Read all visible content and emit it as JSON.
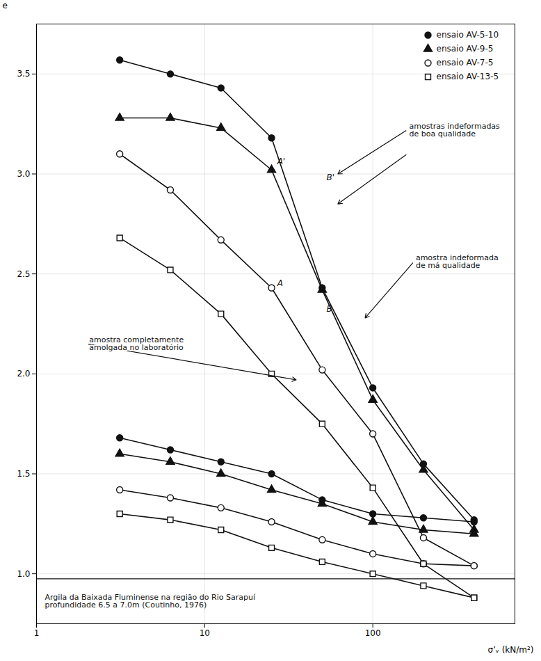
{
  "chart_data": {
    "type": "line",
    "xlabel": "σ’ᵥ (kN/m²)",
    "ylabel": "e",
    "log": "x",
    "grid": true,
    "legend": "upper right",
    "xlim": [
      1,
      700
    ],
    "xticks": [
      1,
      10,
      100
    ],
    "ylim": [
      0.75,
      3.75
    ],
    "yticks": [
      {
        "value": 1.0,
        "label": "1.0"
      },
      1.5,
      {
        "value": 2.0,
        "label": "2.0"
      },
      2.5,
      {
        "value": 3.0,
        "label": "3.0"
      },
      3.5
    ],
    "x": [
      3.125,
      6.25,
      12.5,
      25.0,
      50.0,
      100.0,
      200.0,
      400.0
    ],
    "series": [
      {
        "name": "ensaio AV-5-10",
        "color": "#111111",
        "marker": "circle",
        "values": [
          3.57,
          3.5,
          3.43,
          3.18,
          2.43,
          1.93,
          1.55,
          1.27
        ],
        "lower_values": [
          1.68,
          1.62,
          1.56,
          1.5,
          1.37,
          1.3,
          1.28,
          1.26
        ]
      },
      {
        "name": "ensaio AV-9-5",
        "color": "#111111",
        "marker": "triangle",
        "values": [
          3.28,
          3.28,
          3.23,
          3.02,
          2.42,
          1.87,
          1.52,
          1.22
        ],
        "lower_values": [
          1.6,
          1.56,
          1.5,
          1.42,
          1.35,
          1.26,
          1.22,
          1.2
        ]
      },
      {
        "name": "ensaio AV-7-5",
        "color": "#111111",
        "marker": "open-circle",
        "values": [
          3.1,
          2.92,
          2.67,
          2.43,
          2.02,
          1.7,
          1.18,
          1.04
        ],
        "lower_values": [
          1.42,
          1.38,
          1.33,
          1.26,
          1.17,
          1.1,
          1.05,
          1.04
        ]
      },
      {
        "name": "ensaio AV-13-5",
        "color": "#111111",
        "marker": "open-square",
        "values": [
          2.68,
          2.52,
          2.3,
          2.0,
          1.75,
          1.43,
          1.05,
          0.88
        ],
        "lower_values": [
          1.3,
          1.27,
          1.22,
          1.13,
          1.06,
          1.0,
          0.94,
          0.88
        ]
      }
    ],
    "annotations": [
      {
        "text": "A'",
        "x": 27,
        "y": 3.05
      },
      {
        "text": "B'",
        "x": 53,
        "y": 2.97
      },
      {
        "text": "A",
        "x": 27,
        "y": 2.44
      },
      {
        "text": "B",
        "x": 53,
        "y": 2.31
      },
      {
        "text": "amostras indeformadas\nde boa qualidade",
        "x": 160,
        "y": 3.22,
        "arrows": [
          {
            "from": [
              160,
              3.22
            ],
            "to": [
              62,
              3.0
            ]
          },
          {
            "from": [
              160,
              3.1
            ],
            "to": [
              62,
              2.85
            ]
          }
        ]
      },
      {
        "text": "amostra indeformada\nde má qualidade",
        "x": 175,
        "y": 2.56,
        "arrows": [
          {
            "from": [
              175,
              2.56
            ],
            "to": [
              90,
              2.28
            ]
          }
        ]
      },
      {
        "text": "amostra completamente\namolgada no laboratório",
        "x": 2.0,
        "y": 2.15,
        "arrows": [
          {
            "from": [
              2.0,
              2.15
            ],
            "to": [
              35,
              1.97
            ]
          }
        ]
      }
    ],
    "text_box": {
      "text": "Argila da Baixada Fluminense na região do Rio Sarapuí\nprofundidade 6.5 a 7.0m (Coutinho, 1976)",
      "top": 0.975
    }
  }
}
